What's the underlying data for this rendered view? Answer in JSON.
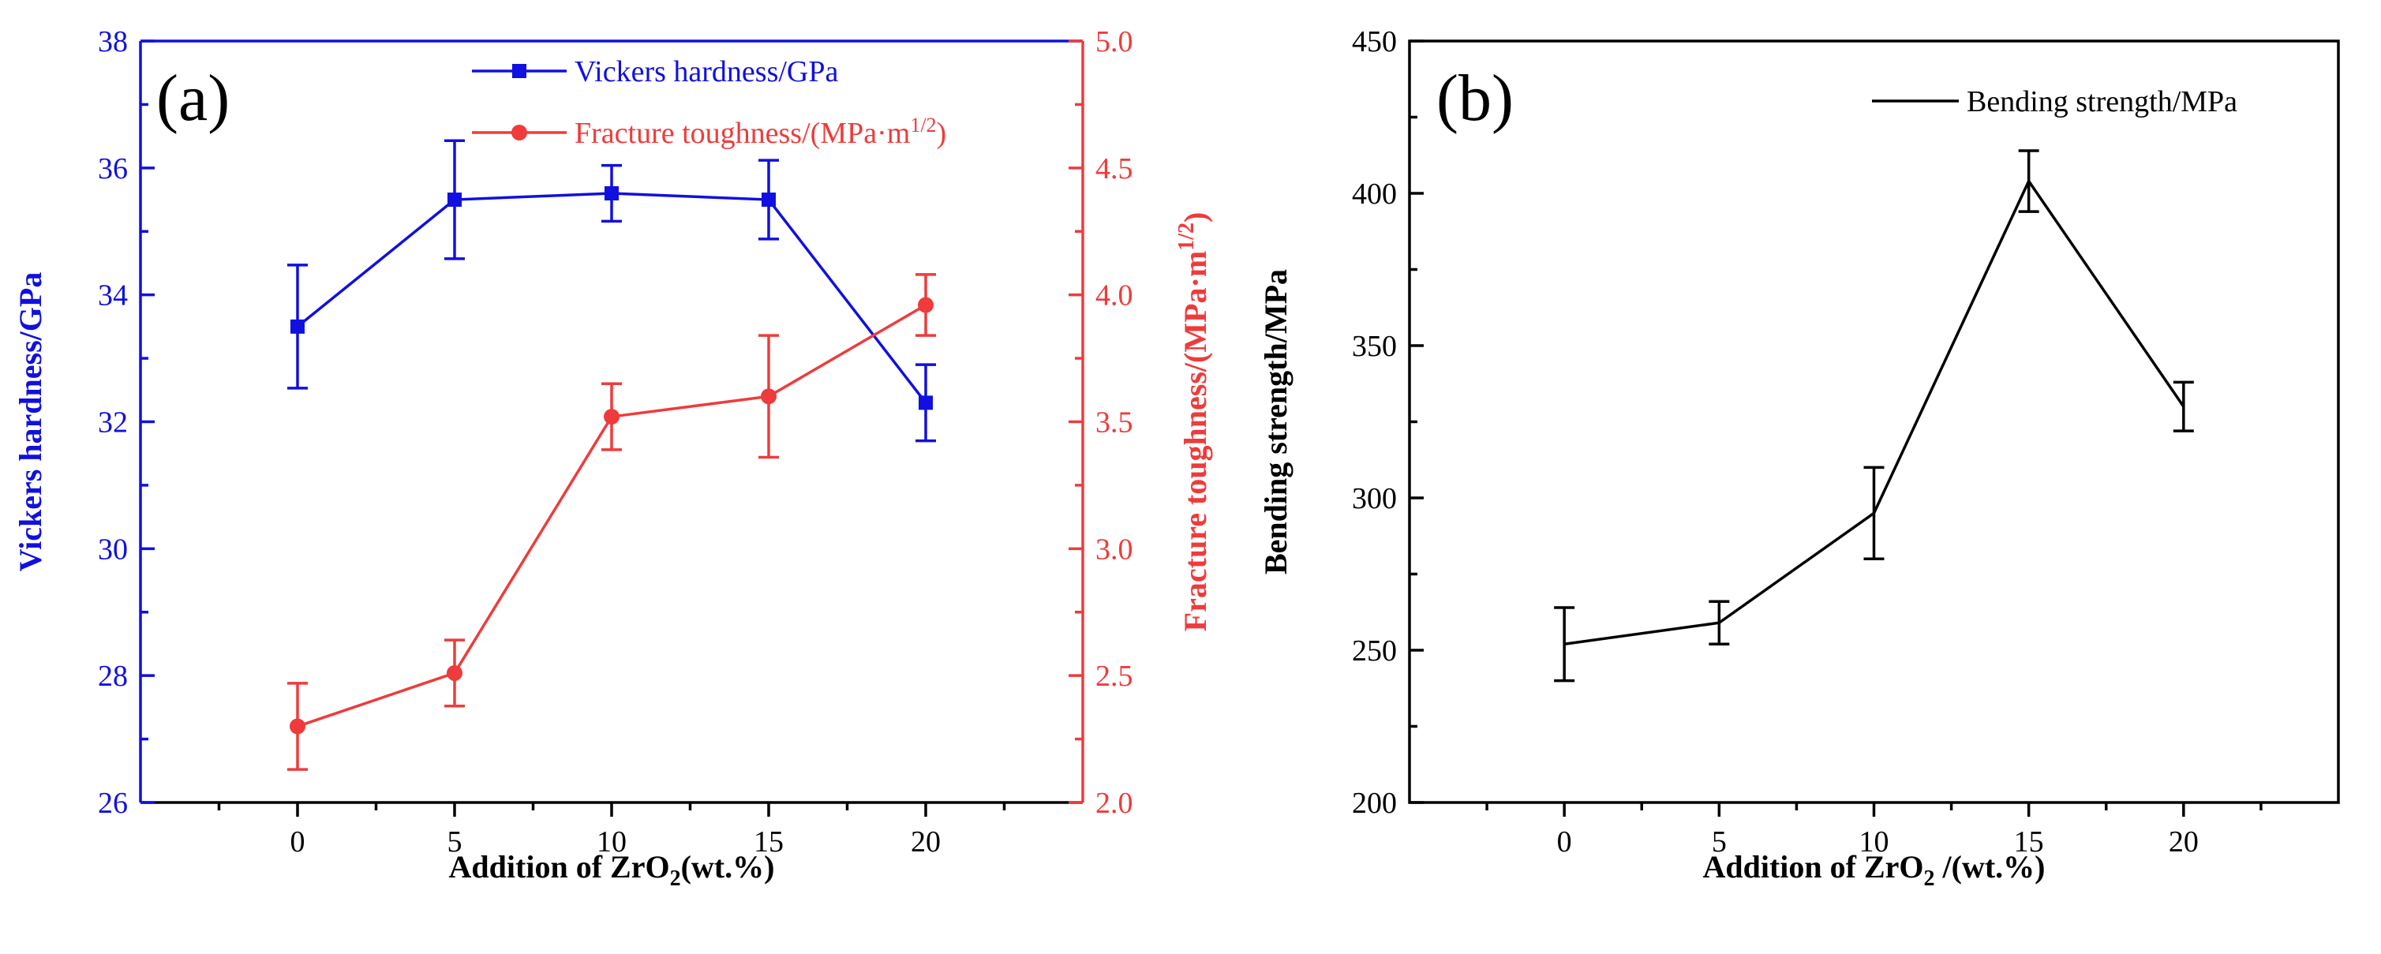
{
  "chart_data": [
    {
      "type": "line",
      "panel_label": "(a)",
      "x": [
        0,
        5,
        10,
        15,
        20
      ],
      "x_ticks": [
        "0",
        "5",
        "10",
        "15",
        "20"
      ],
      "xlim": [
        -5,
        25
      ],
      "xlabel": {
        "pre": "Addition of ZrO",
        "sub": "2",
        "post": "(wt.%)"
      },
      "y_left": {
        "label": "Vickers hardness/GPa",
        "lim": [
          26,
          38
        ],
        "ticks": [
          "26",
          "28",
          "30",
          "32",
          "34",
          "36",
          "38"
        ],
        "color": "#1010e0"
      },
      "y_right": {
        "label": {
          "pre": "Fracture toughness/(MPa·m",
          "sup": "1/2",
          "post": ")"
        },
        "lim": [
          2.0,
          5.0
        ],
        "ticks": [
          "2.0",
          "2.5",
          "3.0",
          "3.5",
          "4.0",
          "4.5",
          "5.0"
        ],
        "color": "#ef3b3b"
      },
      "series": [
        {
          "name": "Vickers hardness/GPa",
          "axis": "left",
          "marker": "square",
          "color": "#1010e0",
          "values": [
            33.5,
            35.5,
            35.6,
            35.5,
            32.3
          ],
          "errors": [
            0.97,
            0.93,
            0.44,
            0.62,
            0.6
          ]
        },
        {
          "name": "Fracture toughness/(MPa·m",
          "name_sup": "1/2",
          "name_post": ")",
          "axis": "right",
          "marker": "circle",
          "color": "#ef3b3b",
          "values": [
            2.3,
            2.51,
            3.52,
            3.6,
            3.96
          ],
          "errors": [
            0.17,
            0.13,
            0.13,
            0.24,
            0.12
          ]
        }
      ],
      "legend_position": "top-right"
    },
    {
      "type": "line",
      "panel_label": "(b)",
      "x": [
        0,
        5,
        10,
        15,
        20
      ],
      "x_ticks": [
        "0",
        "5",
        "10",
        "15",
        "20"
      ],
      "xlim": [
        -5,
        25
      ],
      "xlabel": {
        "pre": "Addition of ZrO",
        "sub": "2",
        "post": " /(wt.%)"
      },
      "ylabel": "Bending strength/MPa",
      "ylim": [
        200,
        450
      ],
      "y_ticks": [
        "200",
        "250",
        "300",
        "350",
        "400",
        "450"
      ],
      "series": [
        {
          "name": "Bending strength/MPa",
          "color": "#000000",
          "values": [
            252,
            259,
            295,
            404,
            330
          ],
          "errors": [
            12,
            7,
            15,
            10,
            8
          ]
        }
      ],
      "legend_position": "top-right"
    }
  ]
}
